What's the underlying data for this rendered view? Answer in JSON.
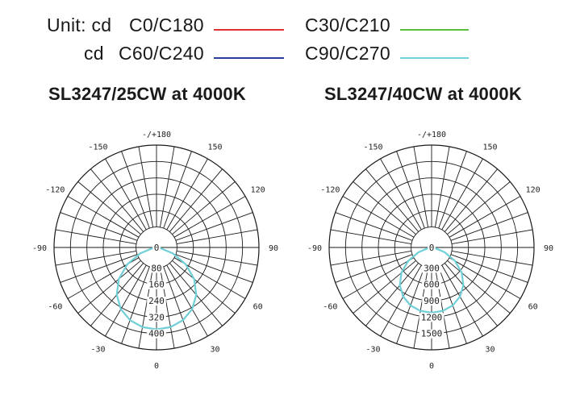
{
  "legend": {
    "unit_label": "Unit: cd",
    "cd_label": "cd",
    "entries": [
      {
        "label": "C0/C180",
        "color": "#e03030"
      },
      {
        "label": "C60/C240",
        "color": "#2a3f99"
      },
      {
        "label": "C30/C210",
        "color": "#5cbf3c"
      },
      {
        "label": "C90/C270",
        "color": "#6fd0d8"
      }
    ]
  },
  "chart_data": [
    {
      "type": "polar",
      "title": "SL3247/25CW at 4000K",
      "angle_labels": {
        "top": "-/+180",
        "bottom": "0",
        "left": [
          "-150",
          "-120",
          "-90",
          "-60",
          "-30"
        ],
        "right": [
          "150",
          "120",
          "90",
          "60",
          "30"
        ]
      },
      "radial_labels": [
        "0",
        "80",
        "160",
        "240",
        "320",
        "400"
      ],
      "rmax": 500,
      "series": [
        {
          "name": "C0/C180",
          "color": "#e03030",
          "angles": [
            0,
            10,
            20,
            30,
            40,
            50,
            60,
            70,
            80,
            90
          ],
          "values": [
            400,
            395,
            378,
            348,
            302,
            240,
            165,
            85,
            20,
            0
          ]
        },
        {
          "name": "C30/C210",
          "color": "#5cbf3c",
          "angles": [
            0,
            10,
            20,
            30,
            40,
            50,
            60,
            70,
            80,
            90
          ],
          "values": [
            400,
            395,
            378,
            348,
            302,
            240,
            165,
            85,
            20,
            0
          ]
        },
        {
          "name": "C60/C240",
          "color": "#2a3f99",
          "angles": [
            0,
            10,
            20,
            30,
            40,
            50,
            60,
            70,
            80,
            90
          ],
          "values": [
            400,
            395,
            378,
            348,
            302,
            240,
            165,
            85,
            20,
            0
          ]
        },
        {
          "name": "C90/C270",
          "color": "#6fd0d8",
          "angles": [
            0,
            10,
            20,
            30,
            40,
            50,
            60,
            70,
            80,
            90
          ],
          "values": [
            400,
            395,
            378,
            348,
            302,
            240,
            165,
            85,
            20,
            0
          ]
        }
      ]
    },
    {
      "type": "polar",
      "title": "SL3247/40CW at 4000K",
      "angle_labels": {
        "top": "-/+180",
        "bottom": "0",
        "left": [
          "-150",
          "-120",
          "-90",
          "-60",
          "-30"
        ],
        "right": [
          "150",
          "120",
          "90",
          "60",
          "30"
        ]
      },
      "radial_labels": [
        "0",
        "300",
        "600",
        "900",
        "1200",
        "1500"
      ],
      "rmax": 1875,
      "series": [
        {
          "name": "C0/C180",
          "color": "#e03030",
          "angles": [
            0,
            10,
            20,
            30,
            40,
            50,
            60,
            70,
            80,
            90
          ],
          "values": [
            1195,
            1180,
            1130,
            1040,
            905,
            720,
            495,
            255,
            60,
            0
          ]
        },
        {
          "name": "C30/C210",
          "color": "#5cbf3c",
          "angles": [
            0,
            10,
            20,
            30,
            40,
            50,
            60,
            70,
            80,
            90
          ],
          "values": [
            1195,
            1180,
            1130,
            1040,
            905,
            720,
            495,
            255,
            60,
            0
          ]
        },
        {
          "name": "C60/C240",
          "color": "#2a3f99",
          "angles": [
            0,
            10,
            20,
            30,
            40,
            50,
            60,
            70,
            80,
            90
          ],
          "values": [
            1195,
            1180,
            1130,
            1040,
            905,
            720,
            495,
            255,
            60,
            0
          ]
        },
        {
          "name": "C90/C270",
          "color": "#6fd0d8",
          "angles": [
            0,
            10,
            20,
            30,
            40,
            50,
            60,
            70,
            80,
            90
          ],
          "values": [
            1195,
            1180,
            1130,
            1040,
            905,
            720,
            495,
            255,
            60,
            0
          ]
        }
      ]
    }
  ]
}
